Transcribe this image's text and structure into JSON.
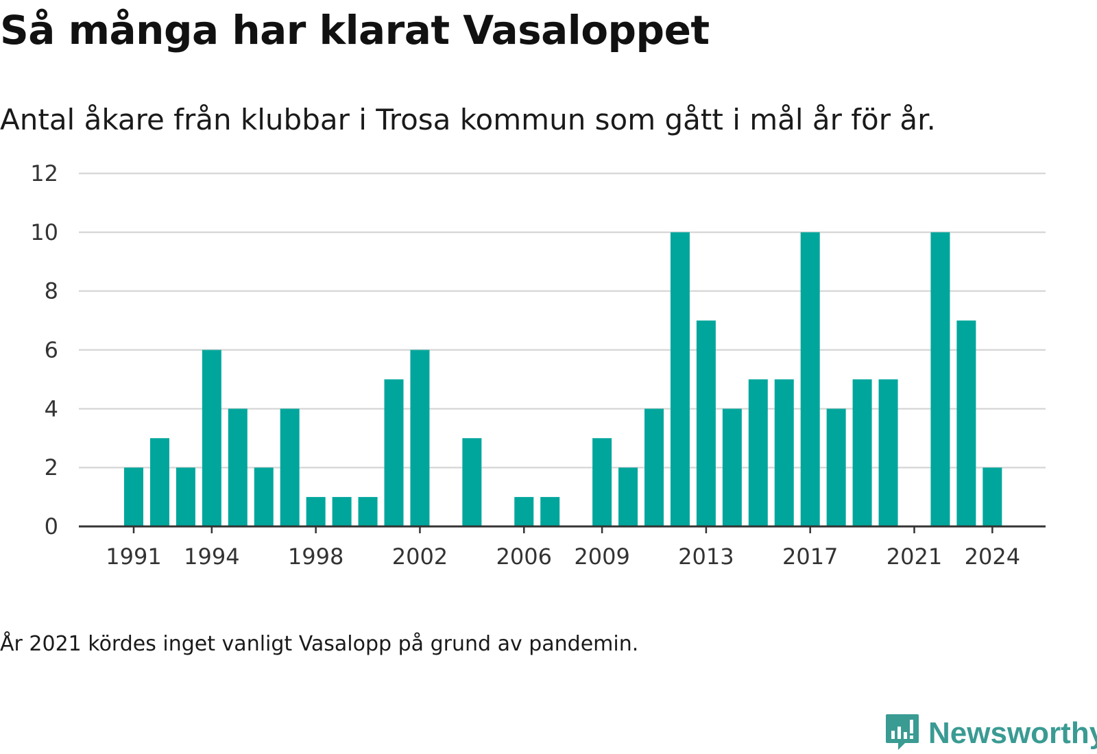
{
  "title": "Så många har klarat Vasaloppet",
  "subtitle": "Antal åkare från klubbar i Trosa kommun som gått i mål år för år.",
  "note": "År 2021 kördes inget vanligt Vasalopp på grund av pandemin.",
  "brand": {
    "name": "Newsworthy",
    "color": "#3a9b93",
    "icon": "newsworthy-logo-icon"
  },
  "colors": {
    "bar": "#00a69c",
    "grid": "#d9d9d9",
    "axis": "#333333"
  },
  "chart_data": {
    "type": "bar",
    "title": "Så många har klarat Vasaloppet",
    "subtitle": "Antal åkare från klubbar i Trosa kommun som gått i mål år för år.",
    "xlabel": "",
    "ylabel": "",
    "ylim": [
      0,
      12
    ],
    "yticks": [
      0,
      2,
      4,
      6,
      8,
      10,
      12
    ],
    "xticks": [
      1991,
      1994,
      1998,
      2002,
      2006,
      2009,
      2013,
      2017,
      2021,
      2024
    ],
    "grid": true,
    "categories": [
      1991,
      1992,
      1993,
      1994,
      1995,
      1996,
      1997,
      1998,
      1999,
      2000,
      2001,
      2002,
      2003,
      2004,
      2005,
      2006,
      2007,
      2008,
      2009,
      2010,
      2011,
      2012,
      2013,
      2014,
      2015,
      2016,
      2017,
      2018,
      2019,
      2020,
      2021,
      2022,
      2023,
      2024
    ],
    "values": [
      2,
      3,
      2,
      6,
      4,
      2,
      4,
      1,
      1,
      1,
      5,
      6,
      0,
      3,
      0,
      1,
      1,
      0,
      3,
      2,
      4,
      10,
      7,
      4,
      5,
      5,
      10,
      4,
      5,
      5,
      0,
      10,
      7,
      2
    ]
  }
}
